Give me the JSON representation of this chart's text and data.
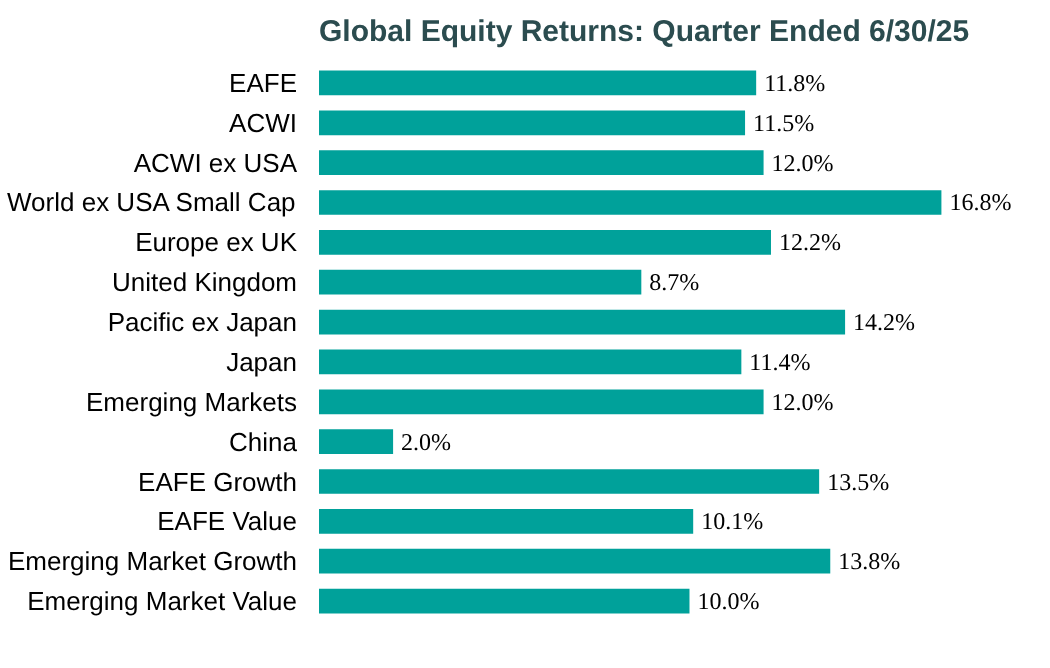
{
  "chart_data": {
    "type": "bar",
    "orientation": "horizontal",
    "title": "Global Equity Returns: Quarter Ended 6/30/25",
    "categories": [
      "EAFE",
      "ACWI",
      "ACWI ex USA",
      "World ex USA Small Cap",
      "Europe ex UK",
      "United Kingdom",
      "Pacific ex Japan",
      "Japan",
      "Emerging Markets",
      "China",
      "EAFE Growth",
      "EAFE Value",
      "Emerging Market Growth",
      "Emerging Market Value"
    ],
    "values": [
      11.8,
      11.5,
      12.0,
      16.8,
      12.2,
      8.7,
      14.2,
      11.4,
      12.0,
      2.0,
      13.5,
      10.1,
      13.8,
      10.0
    ],
    "value_labels": [
      "11.8%",
      "11.5%",
      "12.0%",
      "16.8%",
      "12.2%",
      "8.7%",
      "14.2%",
      "11.4%",
      "12.0%",
      "2.0%",
      "13.5%",
      "10.1%",
      "13.8%",
      "10.0%"
    ],
    "color": "#00a19a"
  }
}
